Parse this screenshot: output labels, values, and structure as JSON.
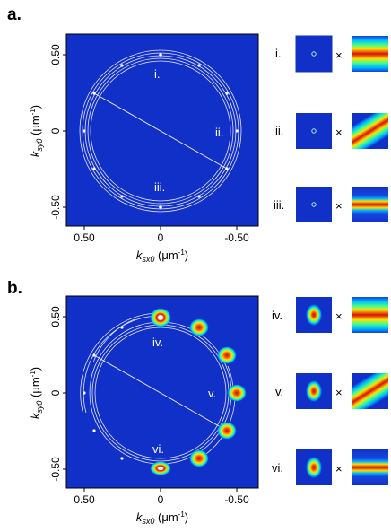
{
  "panel_a": {
    "label": "a.",
    "x_ticks": [
      "0.50",
      "0",
      "-0.50"
    ],
    "y_ticks": [
      "0.50",
      "0",
      "-0.50"
    ],
    "x_title": {
      "k": "k",
      "sub": "sx0",
      "unit": " (μm",
      "exp": "-1",
      "close": ")"
    },
    "y_title": {
      "k": "k",
      "sub": "sy0",
      "unit": " (μm",
      "exp": "-1",
      "close": ")"
    },
    "ring_labels": [
      "i.",
      "ii.",
      "iii."
    ],
    "rows": [
      {
        "label": "i.",
        "operator": "×"
      },
      {
        "label": "ii.",
        "operator": "×"
      },
      {
        "label": "iii.",
        "operator": "×"
      }
    ]
  },
  "panel_b": {
    "label": "b.",
    "x_ticks": [
      "0.50",
      "0",
      "-0.50"
    ],
    "y_ticks": [
      "0.50",
      "0",
      "-0.50"
    ],
    "x_title": {
      "k": "k",
      "sub": "sx0",
      "unit": " (μm",
      "exp": "-1",
      "close": ")"
    },
    "y_title": {
      "k": "k",
      "sub": "sy0",
      "unit": " (μm",
      "exp": "-1",
      "close": ")"
    },
    "ring_labels": [
      "iv.",
      "v.",
      "vi."
    ],
    "rows": [
      {
        "label": "iv.",
        "operator": "×"
      },
      {
        "label": "v.",
        "operator": "×"
      },
      {
        "label": "vi.",
        "operator": "×"
      }
    ]
  },
  "colors": {
    "background": "#1030c8",
    "ring": "#e6e6ff",
    "spot_center": "#ffffff",
    "band_red": "#d01010",
    "band_yellow": "#ffe000",
    "band_cyan": "#00c8ff"
  }
}
